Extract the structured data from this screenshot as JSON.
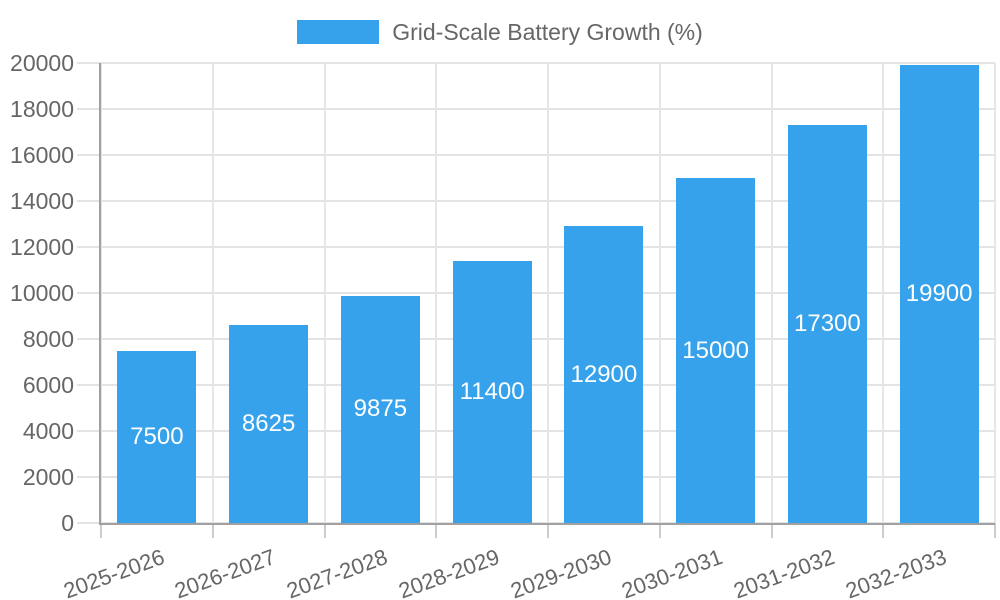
{
  "chart_data": {
    "type": "bar",
    "title": "Grid-Scale Battery Growth (%)",
    "legend": {
      "position": "top-center",
      "items": [
        {
          "label": "Grid-Scale Battery Growth (%)",
          "color": "#36A2EB"
        }
      ]
    },
    "categories": [
      "2025-2026",
      "2026-2027",
      "2027-2028",
      "2028-2029",
      "2029-2030",
      "2030-2031",
      "2031-2032",
      "2032-2033"
    ],
    "series": [
      {
        "name": "Grid-Scale Battery Growth (%)",
        "color": "#36A2EB",
        "values": [
          7500,
          8625,
          9875,
          11400,
          12900,
          15000,
          17300,
          19900
        ]
      }
    ],
    "data_labels": {
      "show": true,
      "position": "center-of-bar",
      "color": "#ffffff",
      "values": [
        "7500",
        "8625",
        "9875",
        "11400",
        "12900",
        "15000",
        "17300",
        "19900"
      ]
    },
    "xlabel": "",
    "ylabel": "",
    "ylim": [
      0,
      20000
    ],
    "yticks": [
      0,
      2000,
      4000,
      6000,
      8000,
      10000,
      12000,
      14000,
      16000,
      18000,
      20000
    ],
    "x_label_rotation_deg": -20,
    "grid": true,
    "styles": {
      "background": "#ffffff",
      "bar_color": "#36A2EB",
      "axis_text_color": "#666666",
      "grid_color": "#e3e3e3",
      "tick_color": "#cccccc",
      "axis_line_color": "#a0a0a0",
      "bar_label_color": "#ffffff"
    }
  }
}
